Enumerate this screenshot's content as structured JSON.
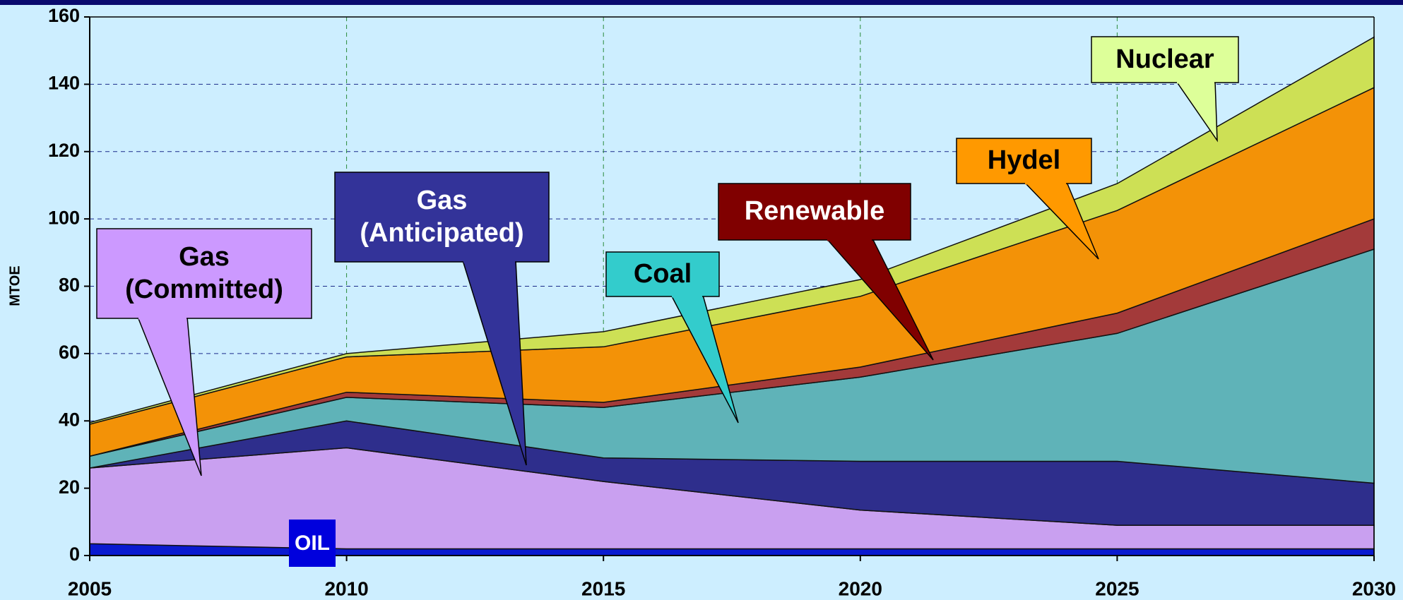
{
  "chart_data": {
    "type": "area",
    "y_label": "MTOE",
    "x": [
      2005,
      2010,
      2015,
      2020,
      2025,
      2030
    ],
    "xlim": [
      2005,
      2030
    ],
    "xticks": [
      2005,
      2010,
      2015,
      2020,
      2025,
      2030
    ],
    "ylim": [
      0,
      160
    ],
    "yticks": [
      0,
      20,
      40,
      60,
      80,
      100,
      120,
      140,
      160
    ],
    "grid": true,
    "stacked": true,
    "series": [
      {
        "name": "OIL",
        "color": "#0a1ad0",
        "values": [
          3.5,
          2,
          2,
          2,
          2,
          2
        ]
      },
      {
        "name": "Gas (Committed)",
        "color": "#c9a0f0",
        "values": [
          22.5,
          30,
          20,
          11.5,
          7,
          7
        ]
      },
      {
        "name": "Gas (Anticipated)",
        "color": "#2e2e8c",
        "values": [
          0,
          8,
          7,
          14.5,
          19,
          12.5
        ]
      },
      {
        "name": "Coal",
        "color": "#5fb3b8",
        "values": [
          3.5,
          7,
          15,
          25,
          38,
          69.5
        ]
      },
      {
        "name": "Renewable",
        "color": "#a33a3a",
        "values": [
          0,
          1.5,
          1.5,
          3,
          6,
          9
        ]
      },
      {
        "name": "Hydel",
        "color": "#f39207",
        "values": [
          9.5,
          10.5,
          16.5,
          21,
          30.5,
          39
        ]
      },
      {
        "name": "Nuclear",
        "color": "#cde055",
        "values": [
          0.5,
          1,
          4.5,
          5,
          8,
          15
        ]
      }
    ]
  }
}
